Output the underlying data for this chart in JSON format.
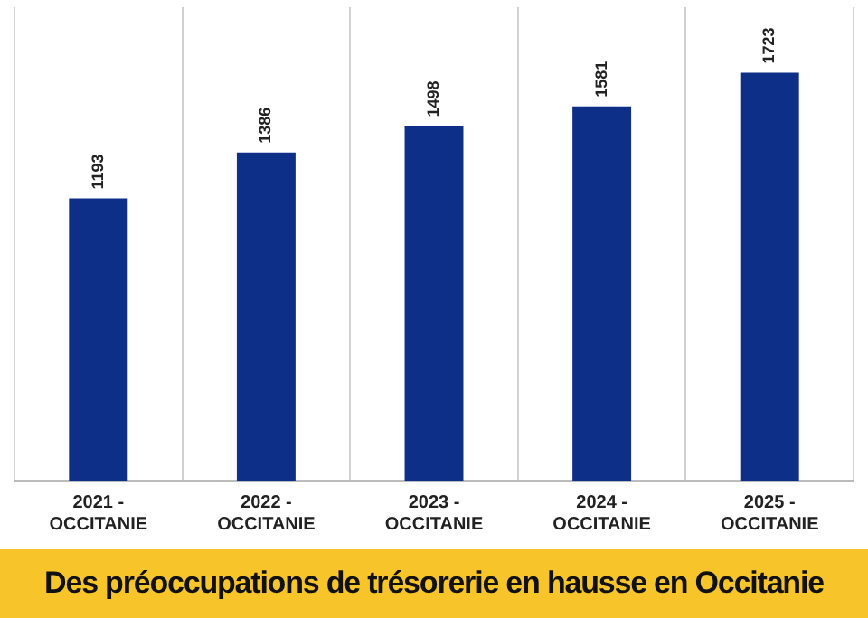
{
  "chart_data": {
    "type": "bar",
    "title": "Des préoccupations de trésorerie en hausse en Occitanie",
    "categories": [
      "2021 - OCCITANIE",
      "2022 - OCCITANIE",
      "2023 - OCCITANIE",
      "2024 - OCCITANIE",
      "2025 - OCCITANIE"
    ],
    "values": [
      1193,
      1386,
      1498,
      1581,
      1723
    ],
    "color": "#0d2f87",
    "data_labels": true,
    "grid": "x",
    "legend": false
  }
}
